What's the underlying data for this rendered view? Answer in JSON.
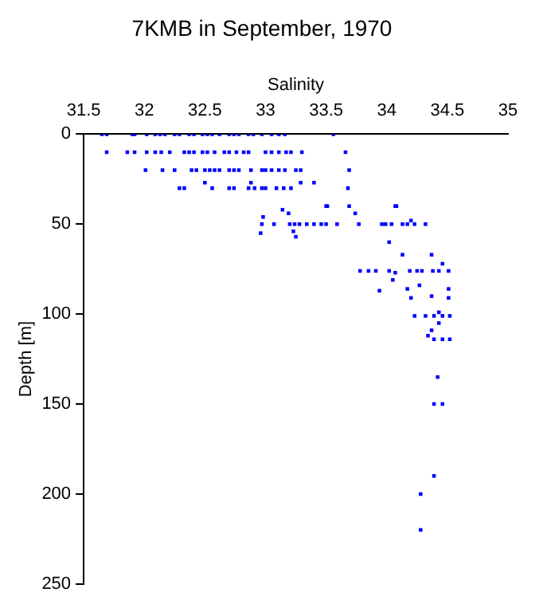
{
  "chart_data": {
    "type": "scatter",
    "title": "7KMB in September, 1970",
    "xlabel": "Salinity",
    "ylabel": "Depth [m]",
    "xlim": [
      31.5,
      35
    ],
    "xticks": [
      31.5,
      32,
      32.5,
      33,
      33.5,
      34,
      34.5,
      35
    ],
    "ylim": [
      250,
      0
    ],
    "yticks": [
      0,
      50,
      100,
      150,
      200,
      250
    ],
    "grid": false,
    "legend": false,
    "marker": "square",
    "series": [
      {
        "color": "#0000ff",
        "x": [
          31.65,
          31.69,
          31.9,
          31.92,
          32.02,
          32.09,
          32.13,
          32.17,
          32.25,
          32.29,
          32.37,
          32.41,
          32.48,
          32.52,
          32.56,
          32.62,
          32.7,
          32.74,
          32.78,
          32.86,
          32.9,
          32.97,
          33.05,
          33.11,
          33.16,
          33.56,
          31.69,
          31.86,
          31.92,
          32.02,
          32.09,
          32.14,
          32.21,
          32.33,
          32.37,
          32.41,
          32.48,
          32.52,
          32.58,
          32.66,
          32.7,
          32.76,
          32.82,
          32.86,
          33.0,
          33.05,
          33.11,
          33.17,
          33.21,
          33.3,
          33.66,
          32.01,
          32.15,
          32.25,
          32.39,
          32.43,
          32.5,
          32.54,
          32.58,
          32.62,
          32.7,
          32.74,
          32.78,
          32.88,
          32.97,
          33.0,
          33.05,
          33.11,
          33.16,
          33.25,
          33.29,
          33.69,
          32.29,
          32.33,
          32.5,
          32.56,
          32.7,
          32.74,
          32.86,
          32.88,
          32.91,
          32.97,
          33.0,
          33.09,
          33.15,
          33.21,
          33.29,
          33.4,
          33.68,
          33.5,
          33.69,
          34.08,
          32.98,
          32.97,
          32.96,
          33.07,
          33.14,
          33.19,
          33.2,
          33.24,
          33.23,
          33.25,
          33.28,
          33.34,
          33.4,
          33.46,
          33.5,
          33.51,
          33.59,
          33.74,
          33.77,
          33.96,
          33.99,
          34.04,
          34.07,
          34.13,
          34.17,
          34.2,
          34.23,
          34.32,
          34.02,
          34.13,
          34.37,
          34.46,
          33.78,
          33.85,
          33.91,
          34.02,
          34.07,
          34.19,
          34.25,
          34.29,
          34.38,
          34.43,
          34.51,
          34.05,
          33.94,
          34.17,
          34.27,
          34.2,
          34.37,
          34.51,
          34.51,
          34.23,
          34.32,
          34.39,
          34.43,
          34.46,
          34.52,
          34.43,
          34.37,
          34.34,
          34.39,
          34.46,
          34.52,
          34.42,
          34.39,
          34.46,
          34.39,
          34.28,
          34.28
        ],
        "values": [
          0,
          0,
          0,
          0,
          0,
          0,
          0,
          0,
          0,
          0,
          0,
          0,
          0,
          0,
          0,
          0,
          0,
          0,
          0,
          0,
          0,
          0,
          0,
          0,
          0,
          0,
          10,
          10,
          10,
          10,
          10,
          10,
          10,
          10,
          10,
          10,
          10,
          10,
          10,
          10,
          10,
          10,
          10,
          10,
          10,
          10,
          10,
          10,
          10,
          10,
          10,
          20,
          20,
          20,
          20,
          20,
          20,
          20,
          20,
          20,
          20,
          20,
          20,
          20,
          20,
          20,
          20,
          20,
          20,
          20,
          20,
          20,
          30,
          30,
          27,
          30,
          30,
          30,
          30,
          27,
          30,
          30,
          30,
          30,
          30,
          30,
          27,
          27,
          30,
          40,
          40,
          40,
          46,
          50,
          55,
          50,
          42,
          44,
          50,
          50,
          54,
          57,
          50,
          50,
          50,
          50,
          50,
          40,
          50,
          44,
          50,
          50,
          50,
          50,
          40,
          50,
          50,
          48,
          50,
          50,
          60,
          67,
          67,
          72,
          76,
          76,
          76,
          76,
          77,
          76,
          76,
          76,
          76,
          76,
          76,
          81,
          87,
          86,
          84,
          91,
          90,
          86,
          91,
          101,
          101,
          101,
          99,
          101,
          101,
          105,
          109,
          112,
          114,
          114,
          114,
          135,
          150,
          150,
          190,
          200,
          220
        ]
      }
    ]
  }
}
